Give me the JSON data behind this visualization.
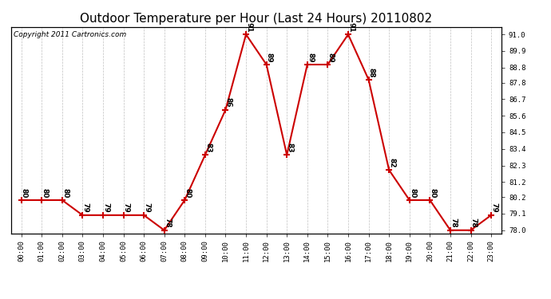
{
  "title": "Outdoor Temperature per Hour (Last 24 Hours) 20110802",
  "copyright_text": "Copyright 2011 Cartronics.com",
  "hours": [
    "00:00",
    "01:00",
    "02:00",
    "03:00",
    "04:00",
    "05:00",
    "06:00",
    "07:00",
    "08:00",
    "09:00",
    "10:00",
    "11:00",
    "12:00",
    "13:00",
    "14:00",
    "15:00",
    "16:00",
    "17:00",
    "18:00",
    "19:00",
    "20:00",
    "21:00",
    "22:00",
    "23:00"
  ],
  "temperatures": [
    80,
    80,
    80,
    79,
    79,
    79,
    79,
    78,
    80,
    83,
    86,
    91,
    89,
    83,
    89,
    89,
    91,
    88,
    82,
    80,
    80,
    78,
    78,
    79
  ],
  "yticks": [
    78.0,
    79.1,
    80.2,
    81.2,
    82.3,
    83.4,
    84.5,
    85.6,
    86.7,
    87.8,
    88.8,
    89.9,
    91.0
  ],
  "line_color": "#cc0000",
  "marker": "+",
  "marker_size": 6,
  "marker_color": "#cc0000",
  "grid_color": "#c0c0c0",
  "background_color": "#ffffff",
  "title_fontsize": 11,
  "label_fontsize": 6.5,
  "copyright_fontsize": 6.5,
  "annotation_fontsize": 6.5,
  "ylim_min": 77.8,
  "ylim_max": 91.5
}
